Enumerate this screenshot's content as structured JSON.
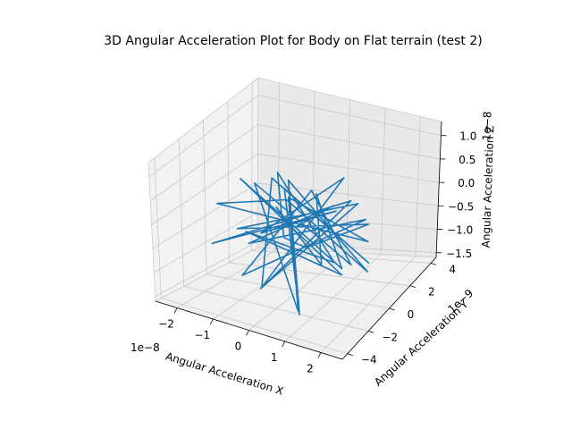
{
  "chart_data": {
    "type": "line",
    "projection": "3d",
    "title": "3D Angular Acceleration Plot for Body on Flat terrain (test 2)",
    "xlabel": "Angular Acceleration X",
    "ylabel": "Angular Acceleration Y",
    "zlabel": "Angular Acceleration Z",
    "x_scale_text": "1e−8",
    "y_scale_text": "1e−9",
    "z_scale_text": "1e−8",
    "x_ticks": [
      "−2",
      "−1",
      "0",
      "1",
      "2"
    ],
    "y_ticks": [
      "−4",
      "−2",
      "0",
      "2",
      "4"
    ],
    "z_ticks": [
      "−1.5",
      "−1.0",
      "−0.5",
      "0.0",
      "0.5",
      "1.0"
    ],
    "xlim": [
      -2.6,
      2.6
    ],
    "ylim": [
      -4.5,
      4.5
    ],
    "zlim": [
      -1.6,
      1.3
    ],
    "grid": true,
    "line_color": "#1f77b4",
    "series": [
      {
        "x": [
          0.0,
          0.6,
          -1.1,
          1.3,
          -0.8,
          0.2,
          1.9,
          -1.7,
          0.9,
          -0.3,
          1.1,
          -2.0,
          0.4,
          1.6,
          -1.2,
          0.7,
          -0.5,
          2.3,
          -1.4,
          0.1,
          1.0,
          -0.9,
          0.5,
          -1.9,
          1.4,
          -0.2,
          0.8,
          -1.3,
          2.0,
          -0.6,
          0.3,
          -1.0,
          1.2,
          -0.4,
          0.6,
          -1.6,
          1.7,
          -0.1,
          0.9,
          -0.7
        ],
        "y": [
          0.0,
          1.5,
          -0.8,
          2.1,
          -2.4,
          0.9,
          -1.2,
          1.8,
          -2.9,
          0.4,
          2.8,
          -0.6,
          -1.9,
          1.1,
          3.2,
          -2.2,
          0.7,
          -0.9,
          2.4,
          -3.5,
          1.3,
          -0.3,
          2.0,
          -1.5,
          0.6,
          -2.7,
          3.0,
          -1.1,
          0.2,
          2.6,
          -2.0,
          1.7,
          -0.5,
          -3.1,
          1.9,
          0.3,
          -1.4,
          2.2,
          -0.7,
          0.5
        ],
        "z": [
          0.0,
          0.4,
          -0.5,
          0.2,
          -0.9,
          0.7,
          -0.2,
          0.3,
          -1.2,
          0.5,
          -0.4,
          0.1,
          0.9,
          -0.7,
          0.3,
          -1.4,
          0.6,
          -0.1,
          0.4,
          -0.8,
          1.1,
          -0.3,
          0.2,
          -0.6,
          0.8,
          -1.0,
          0.3,
          -0.2,
          0.5,
          -0.9,
          0.1,
          0.7,
          -0.4,
          0.2,
          -1.1,
          0.6,
          -0.3,
          0.4,
          -0.5,
          0.2
        ]
      }
    ]
  }
}
